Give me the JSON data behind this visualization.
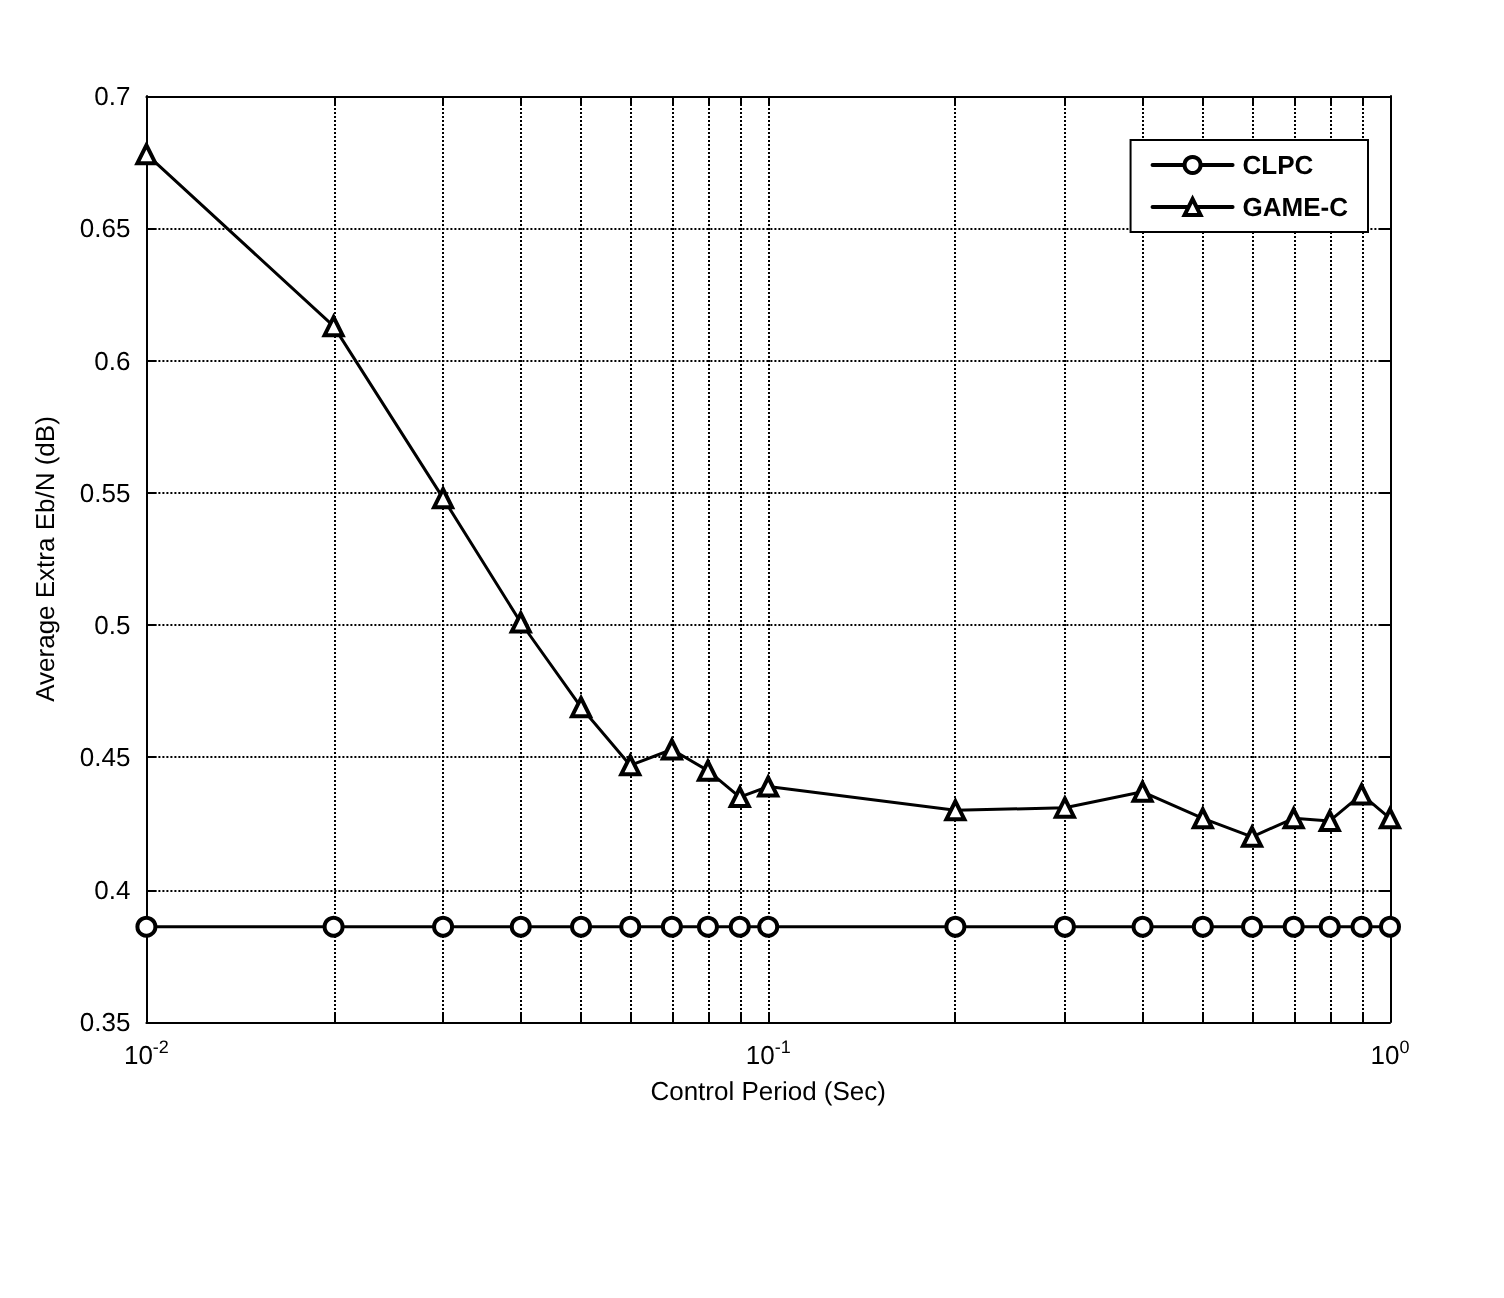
{
  "chart_data": {
    "type": "line",
    "xlabel": "Control Period (Sec)",
    "ylabel": "Average Extra Eb/N (dB)",
    "log": "x",
    "grid": true,
    "legend": "top right",
    "line_style": "solid",
    "xlim": [
      0.01,
      1
    ],
    "xticks": [
      {
        "value": 0.01,
        "label": "10$^{-2}$"
      },
      {
        "value": 0.02,
        "label": null
      },
      {
        "value": 0.03,
        "label": null
      },
      {
        "value": 0.04,
        "label": null
      },
      {
        "value": 0.05,
        "label": null
      },
      {
        "value": 0.06,
        "label": null
      },
      {
        "value": 0.07,
        "label": null
      },
      {
        "value": 0.08,
        "label": null
      },
      {
        "value": 0.09,
        "label": null
      },
      {
        "value": 0.1,
        "label": "10$^{-1}$"
      },
      {
        "value": 0.2,
        "label": null
      },
      {
        "value": 0.3,
        "label": null
      },
      {
        "value": 0.4,
        "label": null
      },
      {
        "value": 0.5,
        "label": null
      },
      {
        "value": 0.6,
        "label": null
      },
      {
        "value": 0.7,
        "label": null
      },
      {
        "value": 0.8,
        "label": null
      },
      {
        "value": 0.9,
        "label": null
      },
      {
        "value": 1,
        "label": "10$^{0}$"
      }
    ],
    "ylim": [
      0.35,
      0.7
    ],
    "yticks": [
      0.35,
      0.4,
      0.45,
      0.5,
      0.55,
      0.6,
      0.65,
      0.7
    ],
    "x": [
      0.01,
      0.02,
      0.03,
      0.04,
      0.05,
      0.06,
      0.07,
      0.08,
      0.09,
      0.1,
      0.2,
      0.3,
      0.4,
      0.5,
      0.6,
      0.7,
      0.8,
      0.9,
      1
    ],
    "series": [
      {
        "name": "CLPC",
        "color": "#000000",
        "marker": "circle",
        "values": [
          0.386,
          0.386,
          0.386,
          0.386,
          0.386,
          0.386,
          0.386,
          0.386,
          0.386,
          0.386,
          0.386,
          0.386,
          0.386,
          0.386,
          0.386,
          0.386,
          0.386,
          0.386,
          0.386
        ]
      },
      {
        "name": "GAME-C",
        "color": "#000000",
        "marker": "triangle",
        "values": [
          0.678,
          0.613,
          0.548,
          0.501,
          0.469,
          0.447,
          0.453,
          0.445,
          0.435,
          0.439,
          0.43,
          0.431,
          0.437,
          0.427,
          0.42,
          0.427,
          0.426,
          0.436,
          0.427
        ]
      }
    ]
  }
}
